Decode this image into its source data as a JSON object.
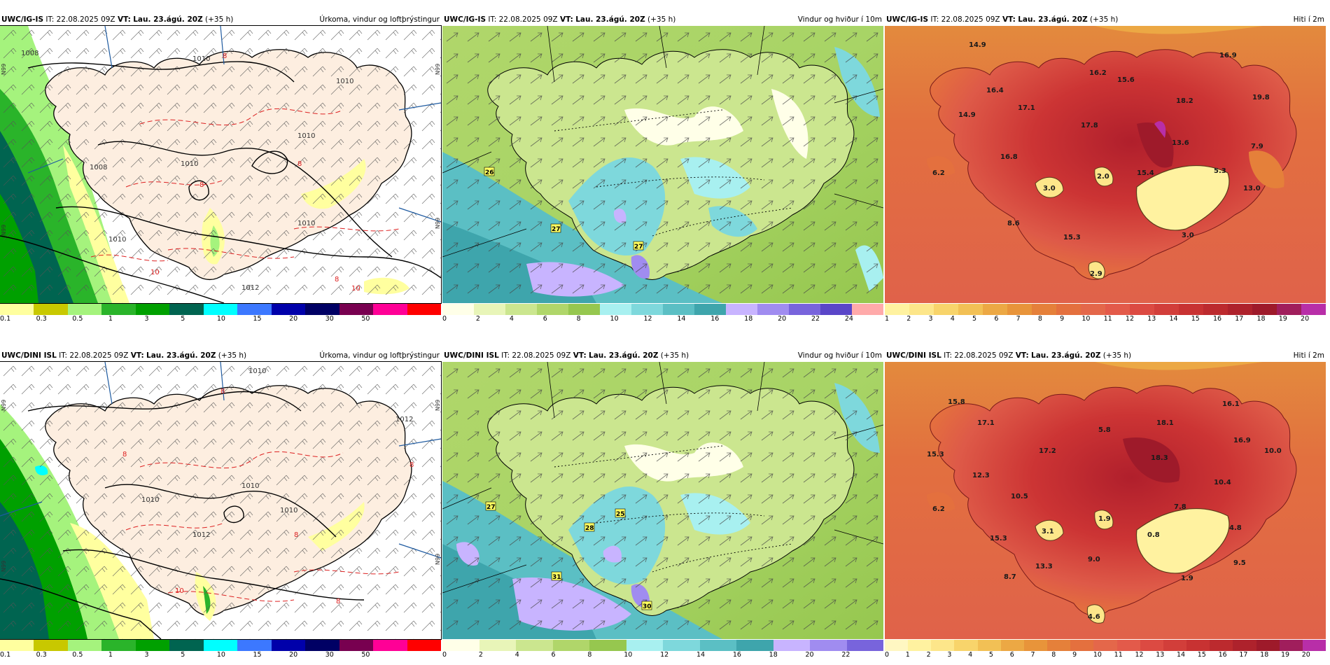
{
  "panels": [
    {
      "id": "p1",
      "model": "UWC/IG-IS",
      "it_label": "IT:",
      "it": "22.08.2025 09Z",
      "vt_label": "VT:",
      "vt": "Lau. 23.ágú. 20Z",
      "lead": "(+35 h)",
      "product": "Úrkoma, vindur og loftþrýstingur",
      "isobar_labels": [
        "1008",
        "1010",
        "1010",
        "1010",
        "1008",
        "1010",
        "1012",
        "1010",
        "1010",
        "8",
        "8",
        "8",
        "8",
        "10",
        "10"
      ],
      "lat_labels": [
        "N99",
        "N99",
        "N99",
        "N99"
      ]
    },
    {
      "id": "p2",
      "model": "UWC/IG-IS",
      "it_label": "IT:",
      "it": "22.08.2025 09Z",
      "vt_label": "VT:",
      "vt": "Lau. 23.ágú. 20Z",
      "lead": "(+35 h)",
      "product": "Vindur og hviður í 10m",
      "gust_labels": [
        "26",
        "27",
        "27"
      ]
    },
    {
      "id": "p3",
      "model": "UWC/IG-IS",
      "it_label": "IT:",
      "it": "22.08.2025 09Z",
      "vt_label": "VT:",
      "vt": "Lau. 23.ágú. 20Z",
      "lead": "(+35 h)",
      "product": "Hiti í 2m",
      "temp_labels": [
        "14.9",
        "16.4",
        "14.9",
        "6.2",
        "16.8",
        "8.6",
        "15.3",
        "2.9",
        "3.0",
        "2.0",
        "15.4",
        "13.6",
        "5.3",
        "13.0",
        "7.9",
        "16.2",
        "17.1",
        "17.8",
        "15.6",
        "18.2",
        "16.9",
        "19.8",
        "3.0"
      ]
    },
    {
      "id": "p4",
      "model": "UWC/DINI ISL",
      "it_label": "IT:",
      "it": "22.08.2025 09Z",
      "vt_label": "VT:",
      "vt": "Lau. 23.ágú. 20Z",
      "lead": "(+35 h)",
      "product": "Úrkoma, vindur og loftþrýstingur",
      "isobar_labels": [
        "1010",
        "1010",
        "1012",
        "1012",
        "1010",
        "1010",
        "8",
        "8",
        "8",
        "8",
        "8",
        "10"
      ],
      "lat_labels": [
        "N99",
        "N99",
        "N99",
        "N99"
      ]
    },
    {
      "id": "p5",
      "model": "UWC/DINI ISL",
      "it_label": "IT:",
      "it": "22.08.2025 09Z",
      "vt_label": "VT:",
      "vt": "Lau. 23.ágú. 20Z",
      "lead": "(+35 h)",
      "product": "Vindur og hviður í 10m",
      "gust_labels": [
        "27",
        "28",
        "25",
        "31",
        "30"
      ]
    },
    {
      "id": "p6",
      "model": "UWC/DINI ISL",
      "it_label": "IT:",
      "it": "22.08.2025 09Z",
      "vt_label": "VT:",
      "vt": "Lau. 23.ágú. 20Z",
      "lead": "(+35 h)",
      "product": "Hiti í 2m",
      "temp_labels": [
        "15.8",
        "17.1",
        "15.3",
        "12.3",
        "6.2",
        "10.5",
        "15.3",
        "8.7",
        "13.3",
        "4.6",
        "3.1",
        "1.9",
        "5.8",
        "17.2",
        "18.1",
        "18.3",
        "16.1",
        "16.9",
        "10.0",
        "10.4",
        "7.8",
        "0.8",
        "4.8",
        "9.5",
        "9.0",
        "1.9"
      ]
    }
  ],
  "colorbars": {
    "precip": {
      "colors": [
        "#ffff9f",
        "#c8c800",
        "#a5f37d",
        "#2ab42a",
        "#00a000",
        "#006450",
        "#00ffff",
        "#3c78ff",
        "#0000aa",
        "#000064",
        "#780050",
        "#ff0096",
        "#ff0000"
      ],
      "labels": [
        "0.1",
        "0.3",
        "0.5",
        "1",
        "3",
        "5",
        "10",
        "15",
        "20",
        "30",
        "50"
      ]
    },
    "wind_top": {
      "colors": [
        "#ffffe8",
        "#e8f5b8",
        "#cbe68f",
        "#b0d66a",
        "#96c74f",
        "#a8f0f0",
        "#7ed8dc",
        "#5bbfc4",
        "#3ea5ac",
        "#c8b4ff",
        "#a08cf0",
        "#7864dc",
        "#5a46c8",
        "#ffaaaa"
      ],
      "labels": [
        "0",
        "2",
        "4",
        "6",
        "8",
        "10",
        "12",
        "14",
        "16",
        "18",
        "20",
        "22",
        "24"
      ]
    },
    "wind_bottom": {
      "colors": [
        "#ffffe8",
        "#e8f5b8",
        "#cbe68f",
        "#b0d66a",
        "#96c74f",
        "#a8f0f0",
        "#7ed8dc",
        "#5bbfc4",
        "#3ea5ac",
        "#c8b4ff",
        "#a08cf0",
        "#7864dc"
      ],
      "labels": [
        "0",
        "2",
        "4",
        "6",
        "8",
        "10",
        "12",
        "14",
        "16",
        "18",
        "20",
        "22"
      ]
    },
    "temp_top": {
      "colors": [
        "#fff2a0",
        "#fde68a",
        "#f8d46b",
        "#f2c055",
        "#eca844",
        "#e8943a",
        "#e5803a",
        "#e4703e",
        "#e4674a",
        "#e35a4a",
        "#dc4a42",
        "#d23e3a",
        "#c83232",
        "#bc2a2e",
        "#ae222c",
        "#9e1a2a",
        "#a01e5c",
        "#b82ea8"
      ],
      "labels": [
        "1",
        "2",
        "3",
        "4",
        "5",
        "6",
        "7",
        "8",
        "9",
        "10",
        "11",
        "12",
        "13",
        "14",
        "15",
        "16",
        "17",
        "18",
        "19",
        "20"
      ]
    },
    "temp_bottom": {
      "colors": [
        "#fff7c2",
        "#fff2a0",
        "#fde68a",
        "#f8d46b",
        "#f2c055",
        "#eca844",
        "#e8943a",
        "#e5803a",
        "#e4703e",
        "#e4674a",
        "#e35a4a",
        "#dc4a42",
        "#d23e3a",
        "#c83232",
        "#bc2a2e",
        "#ae222c",
        "#9e1a2a",
        "#a01e5c",
        "#b82ea8"
      ],
      "labels": [
        "0",
        "1",
        "2",
        "3",
        "4",
        "5",
        "6",
        "7",
        "8",
        "9",
        "10",
        "11",
        "12",
        "13",
        "14",
        "15",
        "16",
        "17",
        "18",
        "19",
        "20"
      ]
    }
  }
}
